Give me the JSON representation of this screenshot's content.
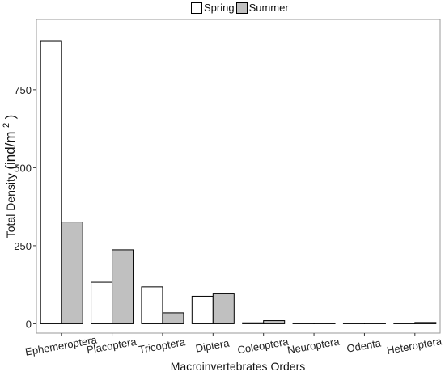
{
  "chart_data": {
    "type": "bar",
    "categories": [
      "Ephemeroptera",
      "Placoptera",
      "Tricoptera",
      "Diptera",
      "Coleoptera",
      "Neuroptera",
      "Odenta",
      "Heteroptera"
    ],
    "series": [
      {
        "name": "Spring",
        "color": "#ffffff",
        "values": [
          905,
          133,
          118,
          88,
          3,
          1,
          0,
          1
        ]
      },
      {
        "name": "Summer",
        "color": "#c0c0c0",
        "values": [
          326,
          237,
          35,
          98,
          10,
          0,
          1,
          4
        ]
      }
    ],
    "xlabel": "Macroinvertebrates Orders",
    "ylabel_main": "Total Density",
    "ylabel_unit": "(ind/m",
    "ylabel_sup": "2",
    "ylabel_close": ")",
    "yticks": [
      0,
      250,
      500,
      750
    ],
    "ylim": [
      -30,
      975
    ],
    "grid": false,
    "legend_position": "top"
  }
}
